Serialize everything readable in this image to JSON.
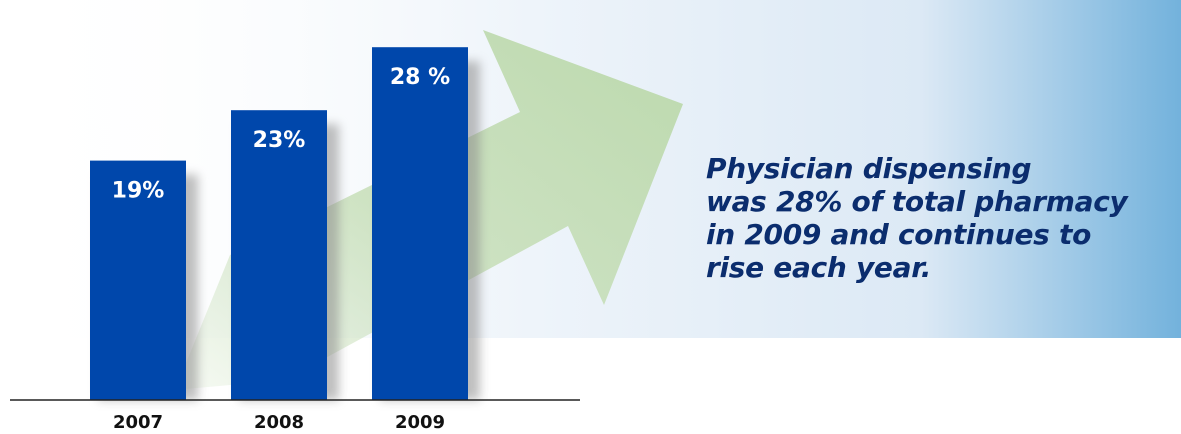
{
  "chart_data": {
    "type": "bar",
    "categories": [
      "2007",
      "2008",
      "2009"
    ],
    "values": [
      19,
      23,
      28
    ],
    "data_labels": [
      "19%",
      "23%",
      "28 %"
    ],
    "title": "",
    "xlabel": "",
    "ylabel": "",
    "ylim": [
      0,
      30
    ],
    "grid": false,
    "legend": "none"
  },
  "callout": {
    "lines": [
      "Physician dispensing",
      "was 28% of total pharmacy",
      "in 2009 and continues to",
      "rise each year."
    ]
  },
  "colors": {
    "bar": "#0047ab",
    "bar_shadow": "#8a8a8a",
    "arrow": "#c4ddb4",
    "panel_light": "#eef4fa",
    "panel_dark": "#73b2dc",
    "axis": "#222222",
    "headline": "#0b2d6e",
    "bar_label": "#ffffff",
    "tick_label": "#111111"
  }
}
